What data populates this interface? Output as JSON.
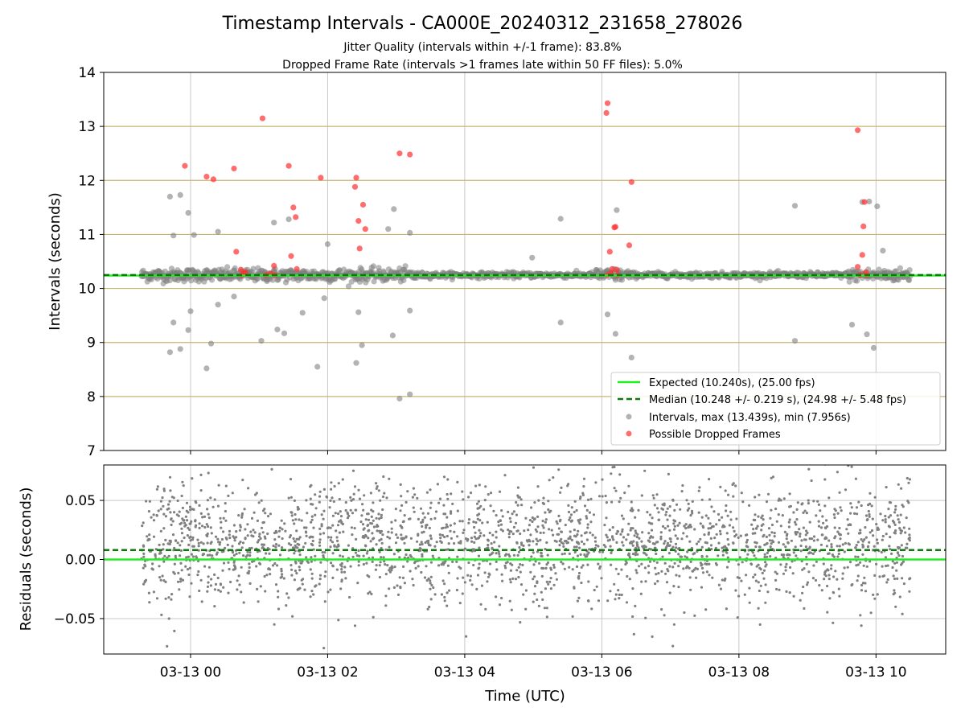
{
  "chart_data": {
    "type": "scatter",
    "title": "Timestamp Intervals - CA000E_20240312_231658_278026",
    "subtitle_lines": [
      "Jitter Quality (intervals within +/-1 frame): 83.8%",
      "Dropped Frame Rate (intervals >1 frames late within 50 FF files): 5.0%"
    ],
    "x_start": "2024-03-12T23:17:00Z",
    "x_end": "2024-03-13T10:30:00Z",
    "xlim": [
      "2024-03-12T22:44:00Z",
      "2024-03-13T11:01:00Z"
    ],
    "xlabel": "Time (UTC)",
    "x_tick_labels": [
      "03-13 00",
      "03-13 02",
      "03-13 04",
      "03-13 06",
      "03-13 08",
      "03-13 10"
    ],
    "x_tick_values": [
      "2024-03-13T00:00:00Z",
      "2024-03-13T02:00:00Z",
      "2024-03-13T04:00:00Z",
      "2024-03-13T06:00:00Z",
      "2024-03-13T08:00:00Z",
      "2024-03-13T10:00:00Z"
    ],
    "top_panel": {
      "ylabel": "Intervals (seconds)",
      "ylim": [
        7,
        14
      ],
      "y_ticks": [
        7,
        8,
        9,
        10,
        11,
        12,
        13,
        14
      ],
      "expected": 10.24,
      "median": 10.248,
      "legend_position": "lower right",
      "legend": [
        {
          "label": "Expected (10.240s), (25.00 fps)",
          "style": "solid-line",
          "color": "#22ee22"
        },
        {
          "label": "Median (10.248 +/- 0.219 s), (24.98 +/- 5.48 fps)",
          "style": "dashed-line",
          "color": "#0a7a0a"
        },
        {
          "label": "Intervals, max (13.439s), min (7.956s)",
          "style": "marker",
          "color": "#808080"
        },
        {
          "label": "Possible Dropped Frames",
          "style": "marker",
          "color": "#ff3030"
        }
      ],
      "outlier_intervals": [
        {
          "t": "2024-03-12T23:42:00Z",
          "y": 11.7
        },
        {
          "t": "2024-03-12T23:42:00Z",
          "y": 8.82
        },
        {
          "t": "2024-03-12T23:45:00Z",
          "y": 10.98
        },
        {
          "t": "2024-03-12T23:45:00Z",
          "y": 9.37
        },
        {
          "t": "2024-03-12T23:51:00Z",
          "y": 11.73
        },
        {
          "t": "2024-03-12T23:51:00Z",
          "y": 8.88
        },
        {
          "t": "2024-03-12T23:58:00Z",
          "y": 11.4
        },
        {
          "t": "2024-03-12T23:58:00Z",
          "y": 9.23
        },
        {
          "t": "2024-03-13T00:00:00Z",
          "y": 9.58
        },
        {
          "t": "2024-03-13T00:03:00Z",
          "y": 10.99
        },
        {
          "t": "2024-03-13T00:14:00Z",
          "y": 8.52
        },
        {
          "t": "2024-03-13T00:18:00Z",
          "y": 8.98
        },
        {
          "t": "2024-03-13T00:24:00Z",
          "y": 9.7
        },
        {
          "t": "2024-03-13T00:24:00Z",
          "y": 11.05
        },
        {
          "t": "2024-03-13T00:38:00Z",
          "y": 9.85
        },
        {
          "t": "2024-03-13T01:02:00Z",
          "y": 9.03
        },
        {
          "t": "2024-03-13T01:13:00Z",
          "y": 11.22
        },
        {
          "t": "2024-03-13T01:16:00Z",
          "y": 9.24
        },
        {
          "t": "2024-03-13T01:22:00Z",
          "y": 9.17
        },
        {
          "t": "2024-03-13T01:26:00Z",
          "y": 11.28
        },
        {
          "t": "2024-03-13T01:38:00Z",
          "y": 9.55
        },
        {
          "t": "2024-03-13T01:51:00Z",
          "y": 8.55
        },
        {
          "t": "2024-03-13T01:57:00Z",
          "y": 9.82
        },
        {
          "t": "2024-03-13T02:00:00Z",
          "y": 10.82
        },
        {
          "t": "2024-03-13T02:25:00Z",
          "y": 8.62
        },
        {
          "t": "2024-03-13T02:27:00Z",
          "y": 9.56
        },
        {
          "t": "2024-03-13T02:30:00Z",
          "y": 8.95
        },
        {
          "t": "2024-03-13T02:53:00Z",
          "y": 11.1
        },
        {
          "t": "2024-03-13T02:57:00Z",
          "y": 9.13
        },
        {
          "t": "2024-03-13T02:58:00Z",
          "y": 11.47
        },
        {
          "t": "2024-03-13T03:03:00Z",
          "y": 7.96
        },
        {
          "t": "2024-03-13T03:12:00Z",
          "y": 8.04
        },
        {
          "t": "2024-03-13T03:12:00Z",
          "y": 11.03
        },
        {
          "t": "2024-03-13T03:12:00Z",
          "y": 9.59
        },
        {
          "t": "2024-03-13T04:59:00Z",
          "y": 10.57
        },
        {
          "t": "2024-03-13T05:24:00Z",
          "y": 11.29
        },
        {
          "t": "2024-03-13T05:24:00Z",
          "y": 9.37
        },
        {
          "t": "2024-03-13T06:05:00Z",
          "y": 9.52
        },
        {
          "t": "2024-03-13T06:12:00Z",
          "y": 9.16
        },
        {
          "t": "2024-03-13T06:13:00Z",
          "y": 11.45
        },
        {
          "t": "2024-03-13T06:26:00Z",
          "y": 8.72
        },
        {
          "t": "2024-03-13T08:49:00Z",
          "y": 11.53
        },
        {
          "t": "2024-03-13T08:49:00Z",
          "y": 9.03
        },
        {
          "t": "2024-03-13T09:39:00Z",
          "y": 9.33
        },
        {
          "t": "2024-03-13T09:48:00Z",
          "y": 11.6
        },
        {
          "t": "2024-03-13T09:52:00Z",
          "y": 9.15
        },
        {
          "t": "2024-03-13T09:54:00Z",
          "y": 11.61
        },
        {
          "t": "2024-03-13T09:58:00Z",
          "y": 8.9
        },
        {
          "t": "2024-03-13T10:01:00Z",
          "y": 11.52
        },
        {
          "t": "2024-03-13T10:06:00Z",
          "y": 10.7
        }
      ],
      "dropped_frames": [
        {
          "t": "2024-03-12T23:55:00Z",
          "y": 12.27
        },
        {
          "t": "2024-03-13T00:14:00Z",
          "y": 12.07
        },
        {
          "t": "2024-03-13T00:20:00Z",
          "y": 12.02
        },
        {
          "t": "2024-03-13T00:38:00Z",
          "y": 12.22
        },
        {
          "t": "2024-03-13T00:40:00Z",
          "y": 10.68
        },
        {
          "t": "2024-03-13T00:44:00Z",
          "y": 10.35
        },
        {
          "t": "2024-03-13T00:45:00Z",
          "y": 10.25
        },
        {
          "t": "2024-03-13T00:47:00Z",
          "y": 10.28
        },
        {
          "t": "2024-03-13T00:48:00Z",
          "y": 10.3
        },
        {
          "t": "2024-03-13T01:03:00Z",
          "y": 13.15
        },
        {
          "t": "2024-03-13T01:06:00Z",
          "y": 10.25
        },
        {
          "t": "2024-03-13T01:10:00Z",
          "y": 10.28
        },
        {
          "t": "2024-03-13T01:13:00Z",
          "y": 10.42
        },
        {
          "t": "2024-03-13T01:14:00Z",
          "y": 10.25
        },
        {
          "t": "2024-03-13T01:26:00Z",
          "y": 12.27
        },
        {
          "t": "2024-03-13T01:28:00Z",
          "y": 10.6
        },
        {
          "t": "2024-03-13T01:30:00Z",
          "y": 11.5
        },
        {
          "t": "2024-03-13T01:32:00Z",
          "y": 11.32
        },
        {
          "t": "2024-03-13T01:33:00Z",
          "y": 10.36
        },
        {
          "t": "2024-03-13T01:54:00Z",
          "y": 12.05
        },
        {
          "t": "2024-03-13T02:24:00Z",
          "y": 11.88
        },
        {
          "t": "2024-03-13T02:25:00Z",
          "y": 12.05
        },
        {
          "t": "2024-03-13T02:27:00Z",
          "y": 11.25
        },
        {
          "t": "2024-03-13T02:28:00Z",
          "y": 10.74
        },
        {
          "t": "2024-03-13T02:31:00Z",
          "y": 11.55
        },
        {
          "t": "2024-03-13T02:33:00Z",
          "y": 11.1
        },
        {
          "t": "2024-03-13T03:03:00Z",
          "y": 12.5
        },
        {
          "t": "2024-03-13T03:12:00Z",
          "y": 12.48
        },
        {
          "t": "2024-03-13T06:04:00Z",
          "y": 13.25
        },
        {
          "t": "2024-03-13T06:05:00Z",
          "y": 13.43
        },
        {
          "t": "2024-03-13T06:07:00Z",
          "y": 10.68
        },
        {
          "t": "2024-03-13T06:08:00Z",
          "y": 10.28
        },
        {
          "t": "2024-03-13T06:09:00Z",
          "y": 10.36
        },
        {
          "t": "2024-03-13T06:11:00Z",
          "y": 11.13
        },
        {
          "t": "2024-03-13T06:12:00Z",
          "y": 11.14
        },
        {
          "t": "2024-03-13T06:13:00Z",
          "y": 10.35
        },
        {
          "t": "2024-03-13T06:14:00Z",
          "y": 10.25
        },
        {
          "t": "2024-03-13T06:26:00Z",
          "y": 11.97
        },
        {
          "t": "2024-03-13T06:24:00Z",
          "y": 10.8
        },
        {
          "t": "2024-03-13T06:05:00Z",
          "y": 10.25
        },
        {
          "t": "2024-03-13T09:44:00Z",
          "y": 12.93
        },
        {
          "t": "2024-03-13T09:44:00Z",
          "y": 10.4
        },
        {
          "t": "2024-03-13T09:46:00Z",
          "y": 10.25
        },
        {
          "t": "2024-03-13T09:48:00Z",
          "y": 10.62
        },
        {
          "t": "2024-03-13T09:49:00Z",
          "y": 11.15
        },
        {
          "t": "2024-03-13T09:50:00Z",
          "y": 11.6
        },
        {
          "t": "2024-03-13T09:51:00Z",
          "y": 10.3
        },
        {
          "t": "2024-03-13T09:52:00Z",
          "y": 10.25
        }
      ]
    },
    "bottom_panel": {
      "ylabel": "Residuals (seconds)",
      "ylim": [
        -0.08,
        0.08
      ],
      "y_ticks": [
        -0.05,
        0.0,
        0.05
      ],
      "y_tick_labels": [
        "−0.05",
        "0.00",
        "0.05"
      ],
      "expected_line": 0.0,
      "median_line": 0.008
    },
    "colors": {
      "expected": "#22ee22",
      "median": "#0a7a0a",
      "interval": "#808080",
      "dropped": "#ff3030",
      "grid": "#c8c8c8",
      "hline": "#c8b46e"
    }
  }
}
